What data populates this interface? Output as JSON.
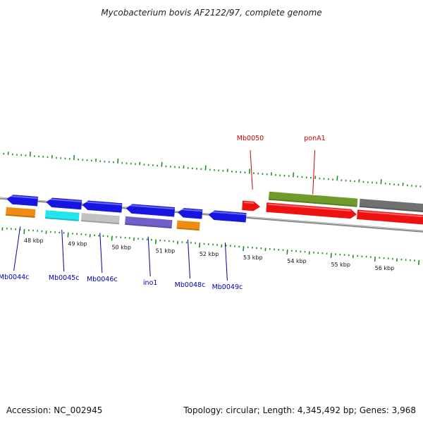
{
  "title": "Mycobacterium bovis AF2122/97, complete genome",
  "accession": "Accession: NC_002945",
  "summary": "Topology: circular; Length: 4,345,492 bp; Genes: 3,968",
  "colors": {
    "backbone": "#8c8c8c",
    "ticks": "#1f8f1f",
    "label_forward": "#cc0000",
    "label_reverse": "#0000aa",
    "gene_blue": "#1616e0",
    "gene_red": "#ee1111",
    "orange": "#f08c14",
    "cyan": "#22e6ee",
    "grey": "#c2c2c2",
    "purple": "#7060c8",
    "olive": "#6f9a2c",
    "darkgrey": "#707070"
  },
  "axis": {
    "unit": "kbp",
    "ticks": [
      {
        "pos": 48,
        "label": "48 kbp"
      },
      {
        "pos": 49,
        "label": "49 kbp"
      },
      {
        "pos": 50,
        "label": "50 kbp"
      },
      {
        "pos": 51,
        "label": "51 kbp"
      },
      {
        "pos": 52,
        "label": "52 kbp"
      },
      {
        "pos": 53,
        "label": "53 kbp"
      },
      {
        "pos": 54,
        "label": "54 kbp"
      },
      {
        "pos": 55,
        "label": "55 kbp"
      },
      {
        "pos": 56,
        "label": "56 kbp"
      }
    ]
  },
  "features": [
    {
      "label": "Mb0044c",
      "strand": "reverse",
      "start": 47.55,
      "end": 48.25,
      "gene_color": "gene_blue",
      "product_color": "orange",
      "labeled": true
    },
    {
      "label": "Mb0045c",
      "strand": "reverse",
      "start": 48.45,
      "end": 49.25,
      "gene_color": "gene_blue",
      "product_color": "cyan",
      "labeled": true
    },
    {
      "label": "Mb0046c",
      "strand": "reverse",
      "start": 49.27,
      "end": 50.17,
      "gene_color": "gene_blue",
      "product_color": "grey",
      "labeled": true
    },
    {
      "label": "ino1",
      "strand": "reverse",
      "start": 50.27,
      "end": 51.37,
      "gene_color": "gene_blue",
      "product_color": "purple",
      "labeled": true
    },
    {
      "label": "Mb0048c",
      "strand": "reverse",
      "start": 51.45,
      "end": 52.0,
      "gene_color": "gene_blue",
      "product_color": "orange",
      "labeled": true
    },
    {
      "label": "Mb0049c",
      "strand": "reverse",
      "start": 52.15,
      "end": 53.0,
      "gene_color": "gene_blue",
      "product_color": null,
      "labeled": true
    },
    {
      "label": "Mb0050",
      "strand": "forward",
      "start": 52.9,
      "end": 53.3,
      "gene_color": "gene_red",
      "product_color": null,
      "labeled": true
    },
    {
      "label": "ponA1",
      "strand": "forward",
      "start": 53.45,
      "end": 55.5,
      "gene_color": "gene_red",
      "product_color": "olive",
      "labeled": true
    },
    {
      "label": "",
      "strand": "forward",
      "start": 55.52,
      "end": 57.2,
      "gene_color": "gene_red",
      "product_color": "darkgrey",
      "labeled": false
    }
  ]
}
